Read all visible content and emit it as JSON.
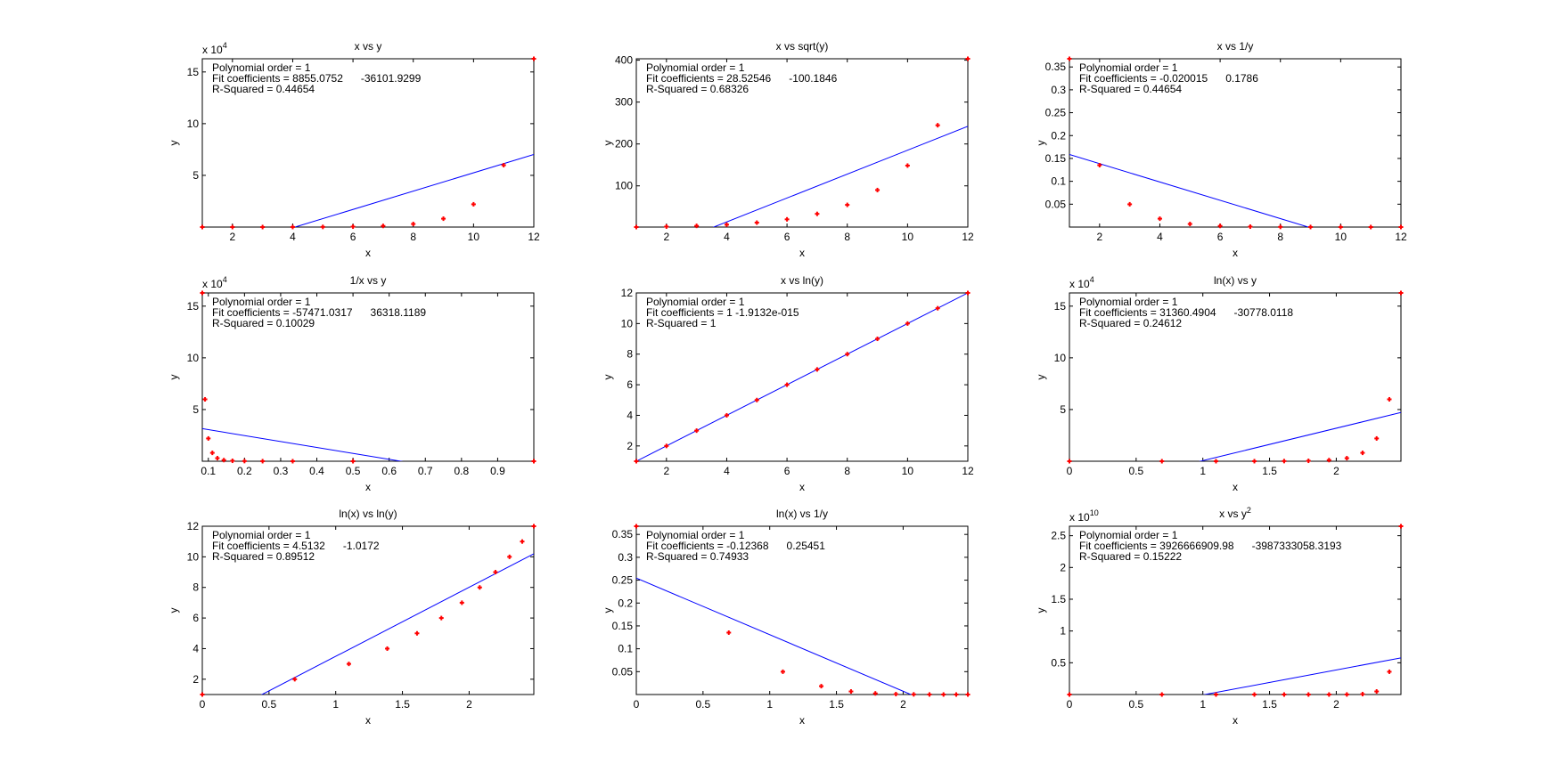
{
  "colors": {
    "points": "#ff0000",
    "fit_line": "#0000ff",
    "axes": "#000000"
  },
  "chart_data": [
    {
      "type": "scatter",
      "title": "x vs y",
      "xlabel": "x",
      "ylabel": "y",
      "y_exponent": {
        "base": "x 10",
        "power": "4"
      },
      "annotation": [
        "Polynomial order = 1",
        "Fit coefficients = 8855.0752      -36101.9299",
        "R-Squared = 0.44654"
      ],
      "xlim": [
        1,
        12
      ],
      "ylim": [
        2.718,
        162755
      ],
      "xticks": [
        2,
        4,
        6,
        8,
        10,
        12
      ],
      "xtick_labels": [
        "2",
        "4",
        "6",
        "8",
        "10",
        "12"
      ],
      "yticks": [
        50000,
        100000,
        150000
      ],
      "ytick_labels": [
        "5",
        "10",
        "15"
      ],
      "x": [
        1,
        2,
        3,
        4,
        5,
        6,
        7,
        8,
        9,
        10,
        11,
        12
      ],
      "y": [
        2.718,
        7.389,
        20.09,
        54.6,
        148.4,
        403.4,
        1096.6,
        2981,
        8103.1,
        22026.5,
        59874.1,
        162754.8
      ],
      "fit": {
        "slope": 8855.0752,
        "intercept": -36101.9299
      }
    },
    {
      "type": "scatter",
      "title": "x vs sqrt(y)",
      "xlabel": "x",
      "ylabel": "y",
      "annotation": [
        "Polynomial order = 1",
        "Fit coefficients = 28.52546      -100.1846",
        "R-Squared = 0.68326"
      ],
      "xlim": [
        1,
        12
      ],
      "ylim": [
        1.649,
        403.4
      ],
      "xticks": [
        2,
        4,
        6,
        8,
        10,
        12
      ],
      "xtick_labels": [
        "2",
        "4",
        "6",
        "8",
        "10",
        "12"
      ],
      "yticks": [
        100,
        200,
        300,
        400
      ],
      "ytick_labels": [
        "100",
        "200",
        "300",
        "400"
      ],
      "x": [
        1,
        2,
        3,
        4,
        5,
        6,
        7,
        8,
        9,
        10,
        11,
        12
      ],
      "y": [
        1.649,
        2.718,
        4.482,
        7.389,
        12.18,
        20.09,
        33.12,
        54.6,
        90.02,
        148.4,
        244.7,
        403.4
      ],
      "fit": {
        "slope": 28.52546,
        "intercept": -100.1846
      }
    },
    {
      "type": "scatter",
      "title": "x vs 1/y",
      "xlabel": "x",
      "ylabel": "y",
      "annotation": [
        "Polynomial order = 1",
        "Fit coefficients = -0.020015      0.1786",
        "R-Squared = 0.44654"
      ],
      "xlim": [
        1,
        12
      ],
      "ylim": [
        6.1e-06,
        0.3679
      ],
      "xticks": [
        2,
        4,
        6,
        8,
        10,
        12
      ],
      "xtick_labels": [
        "2",
        "4",
        "6",
        "8",
        "10",
        "12"
      ],
      "yticks": [
        0.05,
        0.1,
        0.15,
        0.2,
        0.25,
        0.3,
        0.35
      ],
      "ytick_labels": [
        "0.05",
        "0.1",
        "0.15",
        "0.2",
        "0.25",
        "0.3",
        "0.35"
      ],
      "x": [
        1,
        2,
        3,
        4,
        5,
        6,
        7,
        8,
        9,
        10,
        11,
        12
      ],
      "y": [
        0.3679,
        0.1353,
        0.0498,
        0.0183,
        0.00674,
        0.00248,
        0.000912,
        0.000335,
        0.000123,
        4.54e-05,
        1.67e-05,
        6.1e-06
      ],
      "fit": {
        "slope": -0.020015,
        "intercept": 0.1786
      }
    },
    {
      "type": "scatter",
      "title": "1/x vs y",
      "xlabel": "x",
      "ylabel": "y",
      "y_exponent": {
        "base": "x 10",
        "power": "4"
      },
      "annotation": [
        "Polynomial order = 1",
        "Fit coefficients = -57471.0317      36318.1189",
        "R-Squared = 0.10029"
      ],
      "xlim": [
        0.0833,
        1
      ],
      "ylim": [
        2.718,
        162755
      ],
      "xticks": [
        0.1,
        0.2,
        0.3,
        0.4,
        0.5,
        0.6,
        0.7,
        0.8,
        0.9
      ],
      "xtick_labels": [
        "0.1",
        "0.2",
        "0.3",
        "0.4",
        "0.5",
        "0.6",
        "0.7",
        "0.8",
        "0.9"
      ],
      "yticks": [
        50000,
        100000,
        150000
      ],
      "ytick_labels": [
        "5",
        "10",
        "15"
      ],
      "x": [
        1,
        0.5,
        0.3333,
        0.25,
        0.2,
        0.1667,
        0.1429,
        0.125,
        0.1111,
        0.1,
        0.0909,
        0.0833
      ],
      "y": [
        2.718,
        7.389,
        20.09,
        54.6,
        148.4,
        403.4,
        1096.6,
        2981,
        8103.1,
        22026.5,
        59874.1,
        162754.8
      ],
      "fit": {
        "slope": -57471.0317,
        "intercept": 36318.1189
      }
    },
    {
      "type": "scatter",
      "title": "x vs ln(y)",
      "xlabel": "x",
      "ylabel": "y",
      "annotation": [
        "Polynomial order = 1",
        "Fit coefficients = 1 -1.9132e-015",
        "R-Squared = 1"
      ],
      "xlim": [
        1,
        12
      ],
      "ylim": [
        1,
        12
      ],
      "xticks": [
        2,
        4,
        6,
        8,
        10,
        12
      ],
      "xtick_labels": [
        "2",
        "4",
        "6",
        "8",
        "10",
        "12"
      ],
      "yticks": [
        2,
        4,
        6,
        8,
        10,
        12
      ],
      "ytick_labels": [
        "2",
        "4",
        "6",
        "8",
        "10",
        "12"
      ],
      "x": [
        1,
        2,
        3,
        4,
        5,
        6,
        7,
        8,
        9,
        10,
        11,
        12
      ],
      "y": [
        1,
        2,
        3,
        4,
        5,
        6,
        7,
        8,
        9,
        10,
        11,
        12
      ],
      "fit": {
        "slope": 1,
        "intercept": 0
      }
    },
    {
      "type": "scatter",
      "title": "ln(x) vs y",
      "xlabel": "x",
      "ylabel": "y",
      "y_exponent": {
        "base": "x 10",
        "power": "4"
      },
      "annotation": [
        "Polynomial order = 1",
        "Fit coefficients = 31360.4904      -30778.0118",
        "R-Squared = 0.24612"
      ],
      "xlim": [
        0,
        2.4849
      ],
      "ylim": [
        2.718,
        162755
      ],
      "xticks": [
        0,
        0.5,
        1,
        1.5,
        2
      ],
      "xtick_labels": [
        "0",
        "0.5",
        "1",
        "1.5",
        "2"
      ],
      "yticks": [
        50000,
        100000,
        150000
      ],
      "ytick_labels": [
        "5",
        "10",
        "15"
      ],
      "x": [
        0,
        0.6931,
        1.0986,
        1.3863,
        1.6094,
        1.7918,
        1.9459,
        2.0794,
        2.1972,
        2.3026,
        2.3979,
        2.4849
      ],
      "y": [
        2.718,
        7.389,
        20.09,
        54.6,
        148.4,
        403.4,
        1096.6,
        2981,
        8103.1,
        22026.5,
        59874.1,
        162754.8
      ],
      "fit": {
        "slope": 31360.4904,
        "intercept": -30778.0118
      }
    },
    {
      "type": "scatter",
      "title": "ln(x) vs ln(y)",
      "xlabel": "x",
      "ylabel": "y",
      "annotation": [
        "Polynomial order = 1",
        "Fit coefficients = 4.5132      -1.0172",
        "R-Squared = 0.89512"
      ],
      "xlim": [
        0,
        2.4849
      ],
      "ylim": [
        1,
        12
      ],
      "xticks": [
        0,
        0.5,
        1,
        1.5,
        2
      ],
      "xtick_labels": [
        "0",
        "0.5",
        "1",
        "1.5",
        "2"
      ],
      "yticks": [
        2,
        4,
        6,
        8,
        10,
        12
      ],
      "ytick_labels": [
        "2",
        "4",
        "6",
        "8",
        "10",
        "12"
      ],
      "x": [
        0,
        0.6931,
        1.0986,
        1.3863,
        1.6094,
        1.7918,
        1.9459,
        2.0794,
        2.1972,
        2.3026,
        2.3979,
        2.4849
      ],
      "y": [
        1,
        2,
        3,
        4,
        5,
        6,
        7,
        8,
        9,
        10,
        11,
        12
      ],
      "fit": {
        "slope": 4.5132,
        "intercept": -1.0172
      }
    },
    {
      "type": "scatter",
      "title": "ln(x) vs 1/y",
      "xlabel": "x",
      "ylabel": "y",
      "annotation": [
        "Polynomial order = 1",
        "Fit coefficients = -0.12368      0.25451",
        "R-Squared = 0.74933"
      ],
      "xlim": [
        0,
        2.4849
      ],
      "ylim": [
        6.1e-06,
        0.3679
      ],
      "xticks": [
        0,
        0.5,
        1,
        1.5,
        2
      ],
      "xtick_labels": [
        "0",
        "0.5",
        "1",
        "1.5",
        "2"
      ],
      "yticks": [
        0.05,
        0.1,
        0.15,
        0.2,
        0.25,
        0.3,
        0.35
      ],
      "ytick_labels": [
        "0.05",
        "0.1",
        "0.15",
        "0.2",
        "0.25",
        "0.3",
        "0.35"
      ],
      "x": [
        0,
        0.6931,
        1.0986,
        1.3863,
        1.6094,
        1.7918,
        1.9459,
        2.0794,
        2.1972,
        2.3026,
        2.3979,
        2.4849
      ],
      "y": [
        0.3679,
        0.1353,
        0.0498,
        0.0183,
        0.00674,
        0.00248,
        0.000912,
        0.000335,
        0.000123,
        4.54e-05,
        1.67e-05,
        6.1e-06
      ],
      "fit": {
        "slope": -0.12368,
        "intercept": 0.25451
      }
    },
    {
      "type": "scatter",
      "title": "x vs y",
      "title_power": "2",
      "xlabel": "x",
      "ylabel": "y",
      "y_exponent": {
        "base": "x 10",
        "power": "10"
      },
      "annotation": [
        "Polynomial order = 1",
        "Fit coefficients = 3926666909.98      -3987333058.3193",
        "R-Squared = 0.15222"
      ],
      "xlim": [
        0,
        2.4849
      ],
      "ylim": [
        7.389,
        26490000000
      ],
      "xticks": [
        0,
        0.5,
        1,
        1.5,
        2
      ],
      "xtick_labels": [
        "0",
        "0.5",
        "1",
        "1.5",
        "2"
      ],
      "yticks": [
        5000000000,
        10000000000,
        15000000000,
        20000000000,
        25000000000
      ],
      "ytick_labels": [
        "0.5",
        "1",
        "1.5",
        "2",
        "2.5"
      ],
      "x": [
        0,
        0.6931,
        1.0986,
        1.3863,
        1.6094,
        1.7918,
        1.9459,
        2.0794,
        2.1972,
        2.3026,
        2.3979,
        2.4849
      ],
      "y": [
        7.389,
        54.6,
        403.4,
        2981,
        22026,
        162755,
        1202604,
        8886111,
        65659969,
        485165195,
        3584912846,
        26489122130
      ],
      "fit": {
        "slope": 3926666909.98,
        "intercept": -3987333058.3193
      }
    }
  ]
}
